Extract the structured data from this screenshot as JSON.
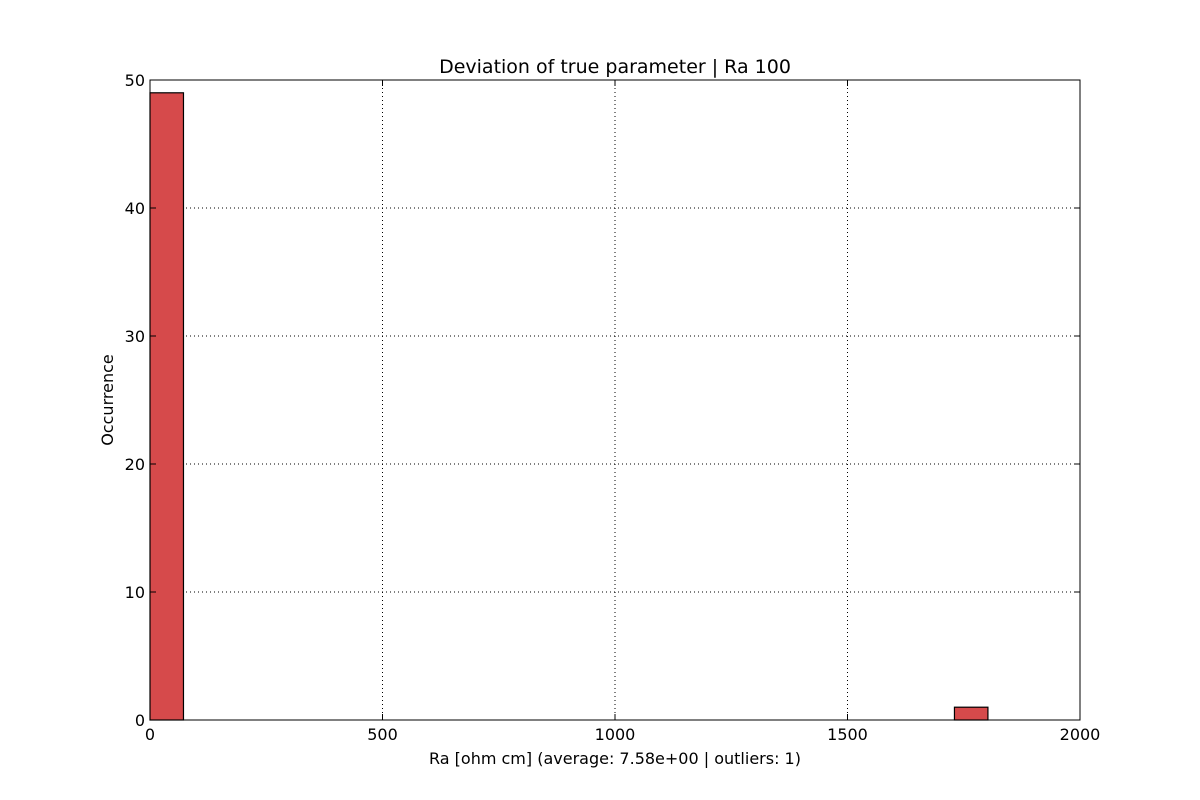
{
  "chart_data": {
    "type": "bar",
    "title": "Deviation of true parameter | Ra 100",
    "xlabel": "Ra [ohm cm] (average: 7.58e+00 | outliers: 1)",
    "ylabel": "Occurrence",
    "xlim": [
      0,
      2000
    ],
    "ylim": [
      0,
      50
    ],
    "xticks": [
      0,
      500,
      1000,
      1500,
      2000
    ],
    "xtick_labels": [
      "0",
      "500",
      "1000",
      "1500",
      "2000"
    ],
    "yticks": [
      0,
      10,
      20,
      30,
      40,
      50
    ],
    "ytick_labels": [
      "0",
      "10",
      "20",
      "30",
      "40",
      "50"
    ],
    "grid": true,
    "bar_color": "#d64a4b",
    "bins": [
      {
        "x0": 0,
        "x1": 72,
        "count": 49
      },
      {
        "x0": 1730,
        "x1": 1802,
        "count": 1
      }
    ]
  }
}
